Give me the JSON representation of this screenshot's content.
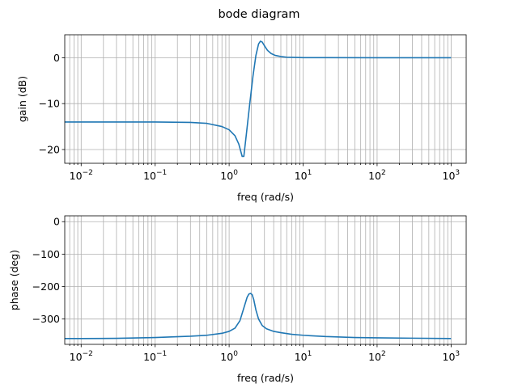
{
  "figure": {
    "title": "bode diagram"
  },
  "chart_data": [
    {
      "type": "line",
      "title": "",
      "xlabel": "freq (rad/s)",
      "ylabel": "gain (dB)",
      "xscale": "log",
      "xlim": [
        0.006,
        1600
      ],
      "ylim": [
        -23,
        5
      ],
      "xticks": [
        {
          "value": 0.01,
          "base": "10",
          "exp": "−2"
        },
        {
          "value": 0.1,
          "base": "10",
          "exp": "−1"
        },
        {
          "value": 1,
          "base": "10",
          "exp": "0"
        },
        {
          "value": 10,
          "base": "10",
          "exp": "1"
        },
        {
          "value": 100,
          "base": "10",
          "exp": "2"
        },
        {
          "value": 1000,
          "base": "10",
          "exp": "3"
        }
      ],
      "yticks": [
        {
          "value": 0,
          "label": "0"
        },
        {
          "value": -10,
          "label": "−10"
        },
        {
          "value": -20,
          "label": "−20"
        }
      ],
      "grid": "major and minor",
      "color": "#1f77b4",
      "series": [
        {
          "x": [
            0.006,
            0.01,
            0.03,
            0.1,
            0.3,
            0.5,
            0.8,
            1.0,
            1.2,
            1.35,
            1.5,
            1.58,
            1.7,
            1.9,
            2.1,
            2.3,
            2.5,
            2.65,
            2.8,
            3.0,
            3.3,
            3.7,
            4.2,
            5,
            6,
            8,
            10,
            20,
            100,
            1000
          ],
          "y": [
            -14,
            -14,
            -14,
            -14,
            -14.1,
            -14.3,
            -15,
            -15.7,
            -17,
            -18.8,
            -21.5,
            -21.5,
            -17,
            -10,
            -4,
            0.5,
            3.0,
            3.6,
            3.4,
            2.6,
            1.6,
            0.9,
            0.5,
            0.25,
            0.1,
            0.05,
            0.02,
            0.01,
            0,
            0
          ]
        }
      ]
    },
    {
      "type": "line",
      "title": "",
      "xlabel": "freq (rad/s)",
      "ylabel": "phase (deg)",
      "xscale": "log",
      "xlim": [
        0.006,
        1600
      ],
      "ylim": [
        -378,
        18
      ],
      "xticks": [
        {
          "value": 0.01,
          "base": "10",
          "exp": "−2"
        },
        {
          "value": 0.1,
          "base": "10",
          "exp": "−1"
        },
        {
          "value": 1,
          "base": "10",
          "exp": "0"
        },
        {
          "value": 10,
          "base": "10",
          "exp": "1"
        },
        {
          "value": 100,
          "base": "10",
          "exp": "2"
        },
        {
          "value": 1000,
          "base": "10",
          "exp": "3"
        }
      ],
      "yticks": [
        {
          "value": 0,
          "label": "0"
        },
        {
          "value": -100,
          "label": "−100"
        },
        {
          "value": -200,
          "label": "−200"
        },
        {
          "value": -300,
          "label": "−300"
        }
      ],
      "grid": "major and minor",
      "color": "#1f77b4",
      "series": [
        {
          "x": [
            0.006,
            0.01,
            0.03,
            0.1,
            0.3,
            0.5,
            0.8,
            1.0,
            1.2,
            1.4,
            1.6,
            1.75,
            1.85,
            1.95,
            2.05,
            2.15,
            2.3,
            2.5,
            2.8,
            3.2,
            4,
            5,
            7,
            10,
            20,
            50,
            100,
            300,
            1000
          ],
          "y": [
            -360,
            -360,
            -359.5,
            -357,
            -353,
            -350,
            -344,
            -338,
            -328,
            -305,
            -262,
            -233,
            -223,
            -221,
            -225,
            -240,
            -272,
            -300,
            -320,
            -330,
            -338,
            -342,
            -347,
            -350,
            -354,
            -357,
            -358,
            -359,
            -360
          ]
        }
      ]
    }
  ]
}
